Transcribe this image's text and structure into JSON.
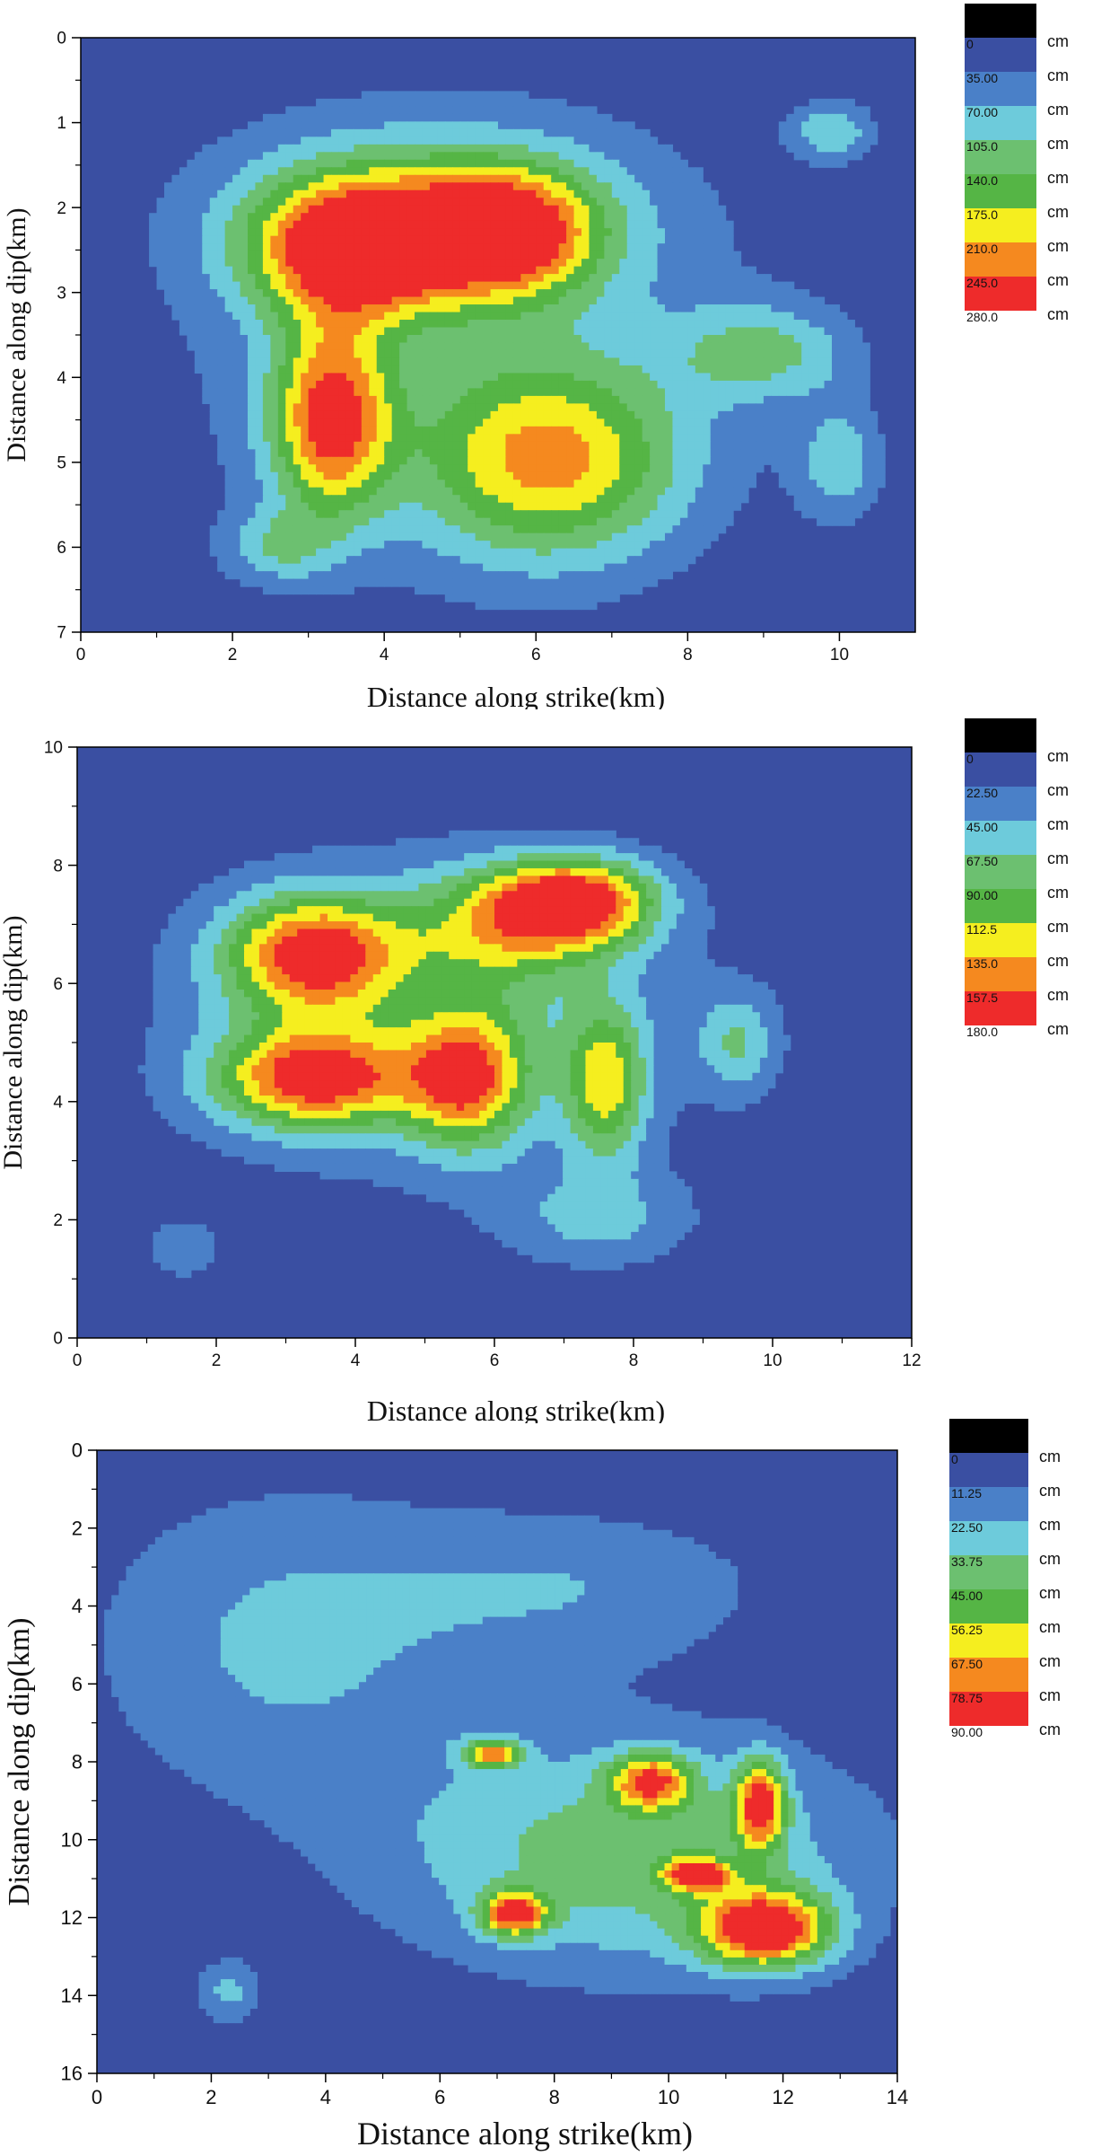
{
  "chart_data": [
    {
      "type": "heatmap",
      "subtype": "filled-contour",
      "title": "",
      "xlabel": "Distance along strike(km)",
      "ylabel": "Distance along dip(km)",
      "xlim": [
        0,
        11
      ],
      "ylim": [
        0,
        7
      ],
      "y_inverted": true,
      "xticks": [
        "0",
        "2",
        "4",
        "6",
        "8",
        "10"
      ],
      "xtick_values": [
        0,
        2,
        4,
        6,
        8,
        10
      ],
      "yticks": [
        "0",
        "1",
        "2",
        "3",
        "4",
        "5",
        "6",
        "7"
      ],
      "ytick_values": [
        0,
        1,
        2,
        3,
        4,
        5,
        6,
        7
      ],
      "legend": {
        "unit": "cm",
        "levels": [
          "0",
          "35.00",
          "70.00",
          "105.0",
          "140.0",
          "175.0",
          "210.0",
          "245.0",
          "280.0"
        ],
        "colors": [
          "#000000",
          "#3a4fa2",
          "#4a80c8",
          "#6dcbdb",
          "#6cc070",
          "#55b545",
          "#f5ee1f",
          "#f5891f",
          "#ee2b2b"
        ]
      },
      "peaks": [
        {
          "x": 3.6,
          "y": 2.5,
          "sx": 0.9,
          "sy": 0.55,
          "v": 230
        },
        {
          "x": 5.6,
          "y": 2.3,
          "sx": 0.8,
          "sy": 0.5,
          "v": 200
        },
        {
          "x": 3.3,
          "y": 4.5,
          "sx": 0.55,
          "sy": 0.8,
          "v": 225
        },
        {
          "x": 6.2,
          "y": 5.0,
          "sx": 1.2,
          "sy": 0.8,
          "v": 180
        },
        {
          "x": 4.6,
          "y": 2.1,
          "sx": 1.8,
          "sy": 0.7,
          "v": 115
        },
        {
          "x": 9.0,
          "y": 3.7,
          "sx": 0.8,
          "sy": 0.4,
          "v": 100
        },
        {
          "x": 9.9,
          "y": 1.1,
          "sx": 0.4,
          "sy": 0.25,
          "v": 95
        },
        {
          "x": 10.0,
          "y": 5.0,
          "sx": 0.4,
          "sy": 0.5,
          "v": 85
        },
        {
          "x": 5.0,
          "y": 3.6,
          "sx": 2.8,
          "sy": 2.0,
          "v": 70
        },
        {
          "x": 2.6,
          "y": 6.0,
          "sx": 0.5,
          "sy": 0.3,
          "v": 80
        }
      ]
    },
    {
      "type": "heatmap",
      "subtype": "filled-contour",
      "title": "",
      "xlabel": "Distance along strike(km)",
      "ylabel": "Distance along dip(km)",
      "xlim": [
        0,
        12
      ],
      "ylim": [
        0,
        10
      ],
      "y_inverted": false,
      "xticks": [
        "0",
        "2",
        "4",
        "6",
        "8",
        "10",
        "12"
      ],
      "xtick_values": [
        0,
        2,
        4,
        6,
        8,
        10,
        12
      ],
      "yticks": [
        "0",
        "2",
        "4",
        "6",
        "8",
        "10"
      ],
      "ytick_values": [
        0,
        2,
        4,
        6,
        8,
        10
      ],
      "legend": {
        "unit": "cm",
        "levels": [
          "0",
          "22.50",
          "45.00",
          "67.50",
          "90.00",
          "112.5",
          "135.0",
          "157.5",
          "180.0"
        ],
        "colors": [
          "#000000",
          "#3a4fa2",
          "#4a80c8",
          "#6dcbdb",
          "#6cc070",
          "#55b545",
          "#f5ee1f",
          "#f5891f",
          "#ee2b2b"
        ]
      },
      "peaks": [
        {
          "x": 3.4,
          "y": 6.5,
          "sx": 0.9,
          "sy": 0.7,
          "v": 150
        },
        {
          "x": 7.2,
          "y": 7.4,
          "sx": 0.8,
          "sy": 0.5,
          "v": 145
        },
        {
          "x": 3.4,
          "y": 4.4,
          "sx": 1.0,
          "sy": 0.6,
          "v": 148
        },
        {
          "x": 5.6,
          "y": 4.4,
          "sx": 0.6,
          "sy": 0.8,
          "v": 128
        },
        {
          "x": 7.6,
          "y": 4.3,
          "sx": 0.4,
          "sy": 0.9,
          "v": 100
        },
        {
          "x": 6.2,
          "y": 7.0,
          "sx": 1.0,
          "sy": 0.7,
          "v": 85
        },
        {
          "x": 5.2,
          "y": 5.4,
          "sx": 2.8,
          "sy": 2.0,
          "v": 55
        },
        {
          "x": 7.5,
          "y": 2.0,
          "sx": 1.0,
          "sy": 0.6,
          "v": 45
        },
        {
          "x": 9.5,
          "y": 5.0,
          "sx": 0.4,
          "sy": 0.6,
          "v": 55
        },
        {
          "x": 1.5,
          "y": 1.5,
          "sx": 0.4,
          "sy": 0.4,
          "v": 35
        }
      ]
    },
    {
      "type": "heatmap",
      "subtype": "filled-contour",
      "title": "",
      "xlabel": "Distance along strike(km)",
      "ylabel": "Distance along dip(km)",
      "xlim": [
        0,
        14
      ],
      "ylim": [
        0,
        16
      ],
      "y_inverted": true,
      "xticks": [
        "0",
        "2",
        "4",
        "6",
        "8",
        "10",
        "12",
        "14"
      ],
      "xtick_values": [
        0,
        2,
        4,
        6,
        8,
        10,
        12,
        14
      ],
      "yticks": [
        "0",
        "2",
        "4",
        "6",
        "8",
        "10",
        "12",
        "14",
        "16"
      ],
      "ytick_values": [
        0,
        2,
        4,
        6,
        8,
        10,
        12,
        14,
        16
      ],
      "legend": {
        "unit": "cm",
        "levels": [
          "0",
          "11.25",
          "22.50",
          "33.75",
          "45.00",
          "56.25",
          "67.50",
          "78.75",
          "90.00"
        ],
        "colors": [
          "#000000",
          "#3a4fa2",
          "#4a80c8",
          "#6dcbdb",
          "#6cc070",
          "#55b545",
          "#f5ee1f",
          "#f5891f",
          "#ee2b2b"
        ]
      },
      "peaks": [
        {
          "x": 11.7,
          "y": 12.3,
          "sx": 0.8,
          "sy": 0.7,
          "v": 85
        },
        {
          "x": 7.3,
          "y": 11.9,
          "sx": 0.4,
          "sy": 0.4,
          "v": 70
        },
        {
          "x": 11.6,
          "y": 9.1,
          "sx": 0.3,
          "sy": 0.8,
          "v": 72
        },
        {
          "x": 9.7,
          "y": 8.5,
          "sx": 0.5,
          "sy": 0.5,
          "v": 62
        },
        {
          "x": 10.5,
          "y": 10.9,
          "sx": 0.4,
          "sy": 0.3,
          "v": 65
        },
        {
          "x": 6.9,
          "y": 7.8,
          "sx": 0.35,
          "sy": 0.25,
          "v": 60
        },
        {
          "x": 9.3,
          "y": 10.4,
          "sx": 3.0,
          "sy": 2.2,
          "v": 40
        },
        {
          "x": 3.2,
          "y": 5.0,
          "sx": 2.5,
          "sy": 3.0,
          "v": 24
        },
        {
          "x": 8.5,
          "y": 3.5,
          "sx": 2.5,
          "sy": 1.5,
          "v": 20
        },
        {
          "x": 2.3,
          "y": 13.9,
          "sx": 0.4,
          "sy": 0.6,
          "v": 25
        }
      ]
    }
  ]
}
